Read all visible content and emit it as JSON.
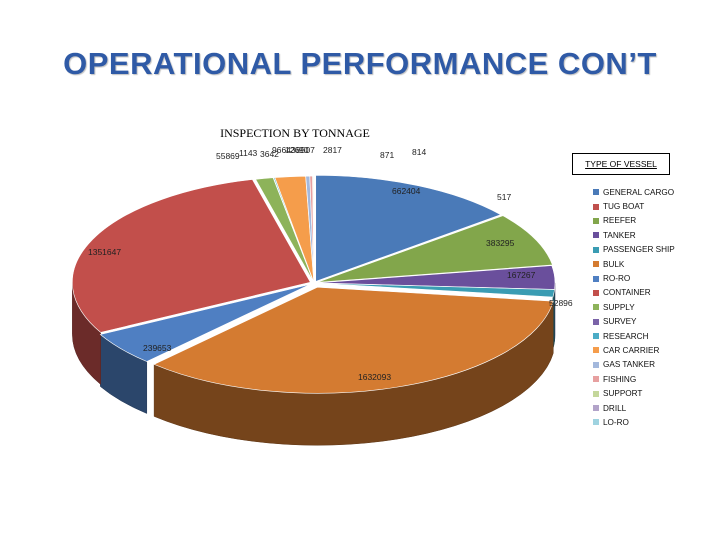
{
  "slide": {
    "title": "OPERATIONAL PERFORMANCE CON’T"
  },
  "chart_data": {
    "type": "pie",
    "title": "INSPECTION BY TONNAGE",
    "legend_title": "TYPE OF VESSEL",
    "legend_position": "right",
    "style": "3d-exploded",
    "slices": [
      {
        "name": "GENERAL CARGO",
        "value": 662404,
        "label": "662404",
        "color": "#4a7ab8"
      },
      {
        "name": "TUG BOAT",
        "value": 517,
        "label": "517",
        "color": "#c0504d"
      },
      {
        "name": "REEFER",
        "value": 383295,
        "label": "383295",
        "color": "#82a64b"
      },
      {
        "name": "TANKER",
        "value": 167267,
        "label": "167267",
        "color": "#6a4f9c"
      },
      {
        "name": "PASSENGER SHIP",
        "value": 52896,
        "label": "52896",
        "color": "#3a9cb3"
      },
      {
        "name": "BULK",
        "value": 1632093,
        "label": "1632093",
        "color": "#d47b31"
      },
      {
        "name": "RO-RO",
        "value": 239653,
        "label": "239653",
        "color": "#4f7fc2"
      },
      {
        "name": "CONTAINER",
        "value": 1351647,
        "label": "1351647",
        "color": "#c24f4b"
      },
      {
        "name": "SUPPLY",
        "value": 55869,
        "label": "55869",
        "color": "#8db35a"
      },
      {
        "name": "SURVEY",
        "value": 1143,
        "label": "1143",
        "color": "#7a63a8"
      },
      {
        "name": "RESEARCH",
        "value": 3642,
        "label": "3642",
        "color": "#4bacc6"
      },
      {
        "name": "CAR CARRIER",
        "value": 96643,
        "label": "96643",
        "color": "#f59d4b"
      },
      {
        "name": "GAS TANKER",
        "value": 12690,
        "label": "12690",
        "color": "#a3b8dc"
      },
      {
        "name": "FISHING",
        "value": 8507,
        "label": "8507",
        "color": "#e7a0a0"
      },
      {
        "name": "SUPPORT",
        "value": 2817,
        "label": "2817",
        "color": "#c4d79b"
      },
      {
        "name": "DRILL",
        "value": 871,
        "label": "871",
        "color": "#b2a3c9"
      },
      {
        "name": "LO-RO",
        "value": 814,
        "label": "814",
        "color": "#9fd3e0"
      }
    ]
  }
}
